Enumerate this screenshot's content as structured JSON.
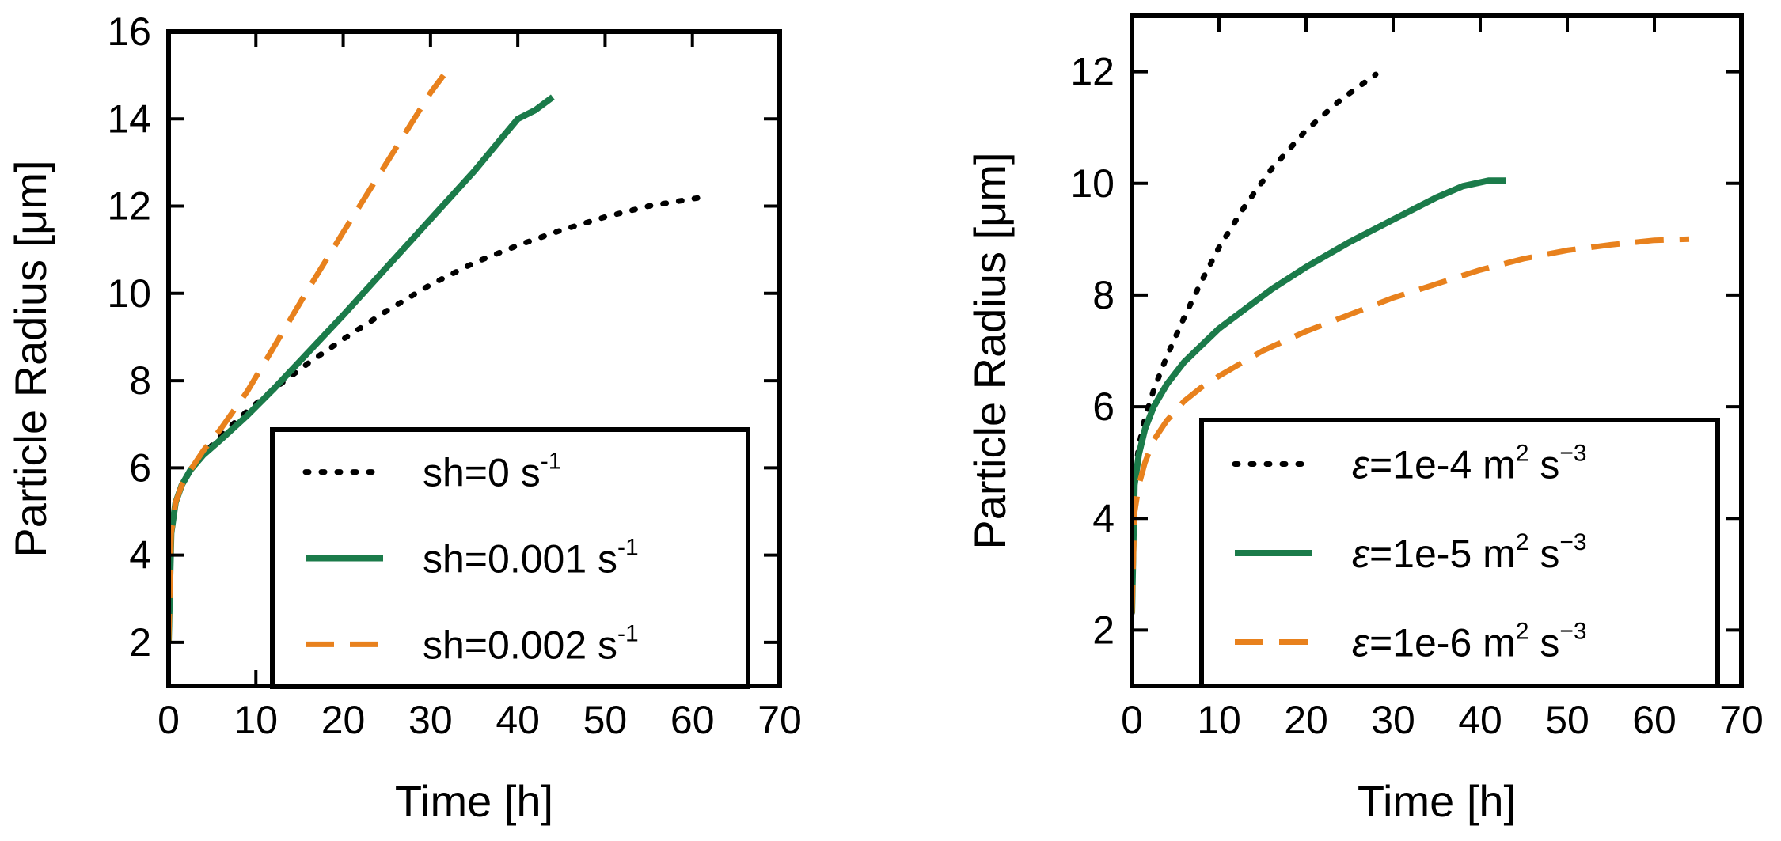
{
  "chart_data": [
    {
      "type": "line",
      "title": "",
      "xlabel": "Time [h]",
      "ylabel": "Particle Radius [μm]",
      "xlim": [
        0,
        70
      ],
      "ylim": [
        1,
        16
      ],
      "xticks": [
        0,
        10,
        20,
        30,
        40,
        50,
        60,
        70
      ],
      "yticks": [
        2,
        4,
        6,
        8,
        10,
        12,
        14,
        16
      ],
      "grid": false,
      "legend_position": "lower-right",
      "series": [
        {
          "name": "sh=0 s-1",
          "label_main": "sh=0 s",
          "label_sup": "-1",
          "color": "#000000",
          "style": "dotted",
          "x": [
            0,
            0.3,
            0.8,
            1.5,
            2.5,
            4,
            6,
            9,
            12,
            16,
            20,
            25,
            30,
            35,
            40,
            45,
            50,
            55,
            61
          ],
          "y": [
            2,
            4.5,
            5.2,
            5.6,
            5.95,
            6.3,
            6.75,
            7.3,
            7.8,
            8.4,
            8.95,
            9.6,
            10.2,
            10.7,
            11.1,
            11.45,
            11.75,
            12.0,
            12.2
          ]
        },
        {
          "name": "sh=0.001 s-1",
          "label_main": "sh=0.001 s",
          "label_sup": "-1",
          "color": "#1b7b4a",
          "style": "solid",
          "x": [
            0,
            0.3,
            0.8,
            1.5,
            2.5,
            4,
            6,
            9,
            12,
            16,
            20,
            25,
            30,
            35,
            40,
            42,
            44
          ],
          "y": [
            2,
            4.5,
            5.2,
            5.6,
            5.95,
            6.3,
            6.65,
            7.2,
            7.8,
            8.65,
            9.5,
            10.6,
            11.7,
            12.8,
            14.0,
            14.2,
            14.5
          ]
        },
        {
          "name": "sh=0.002 s-1",
          "label_main": "sh=0.002 s",
          "label_sup": "-1",
          "color": "#e8811d",
          "style": "dashed",
          "x": [
            0,
            0.3,
            0.8,
            1.5,
            2.5,
            4,
            6,
            9,
            12,
            16,
            20,
            25,
            30,
            31.5
          ],
          "y": [
            2,
            4.5,
            5.2,
            5.6,
            5.95,
            6.4,
            6.9,
            7.75,
            8.75,
            10.1,
            11.4,
            13.0,
            14.6,
            15.0
          ]
        }
      ]
    },
    {
      "type": "line",
      "title": "",
      "xlabel": "Time [h]",
      "ylabel": "Particle Radius [μm]",
      "xlim": [
        0,
        70
      ],
      "ylim": [
        1,
        13
      ],
      "xticks": [
        0,
        10,
        20,
        30,
        40,
        50,
        60,
        70
      ],
      "yticks": [
        2,
        4,
        6,
        8,
        10,
        12
      ],
      "grid": false,
      "legend_position": "lower-right",
      "series": [
        {
          "name": "ε=1e-4 m2 s-3",
          "label_eps": "ε",
          "label_main": "=1e-4 m",
          "label_sup1": "2",
          "label_mid": " s",
          "label_sup2": "−3",
          "color": "#000000",
          "style": "dotted",
          "x": [
            0,
            0.3,
            0.8,
            1.5,
            2.5,
            4,
            6,
            8,
            10,
            13,
            16,
            20,
            24,
            28
          ],
          "y": [
            2.3,
            4.7,
            5.3,
            5.8,
            6.3,
            6.9,
            7.6,
            8.25,
            8.85,
            9.6,
            10.25,
            10.95,
            11.5,
            11.95
          ]
        },
        {
          "name": "ε=1e-5 m2 s-3",
          "label_eps": "ε",
          "label_main": "=1e-5 m",
          "label_sup1": "2",
          "label_mid": " s",
          "label_sup2": "−3",
          "color": "#1b7b4a",
          "style": "solid",
          "x": [
            0,
            0.3,
            0.8,
            1.5,
            2.5,
            4,
            6,
            8,
            10,
            13,
            16,
            20,
            25,
            30,
            35,
            38,
            41,
            43
          ],
          "y": [
            2.3,
            4.6,
            5.15,
            5.6,
            6.0,
            6.4,
            6.8,
            7.1,
            7.4,
            7.75,
            8.1,
            8.5,
            8.95,
            9.35,
            9.75,
            9.95,
            10.05,
            10.05
          ]
        },
        {
          "name": "ε=1e-6 m2 s-3",
          "label_eps": "ε",
          "label_main": "=1e-6 m",
          "label_sup1": "2",
          "label_mid": " s",
          "label_sup2": "−3",
          "color": "#e8811d",
          "style": "dashed",
          "x": [
            0,
            0.3,
            0.8,
            1.5,
            2.5,
            4,
            6,
            8,
            10,
            15,
            20,
            25,
            30,
            35,
            40,
            45,
            50,
            55,
            60,
            64
          ],
          "y": [
            2.3,
            4.1,
            4.6,
            5.0,
            5.4,
            5.75,
            6.1,
            6.35,
            6.55,
            7.0,
            7.35,
            7.65,
            7.95,
            8.2,
            8.45,
            8.65,
            8.8,
            8.9,
            8.98,
            9.0
          ]
        }
      ]
    }
  ]
}
